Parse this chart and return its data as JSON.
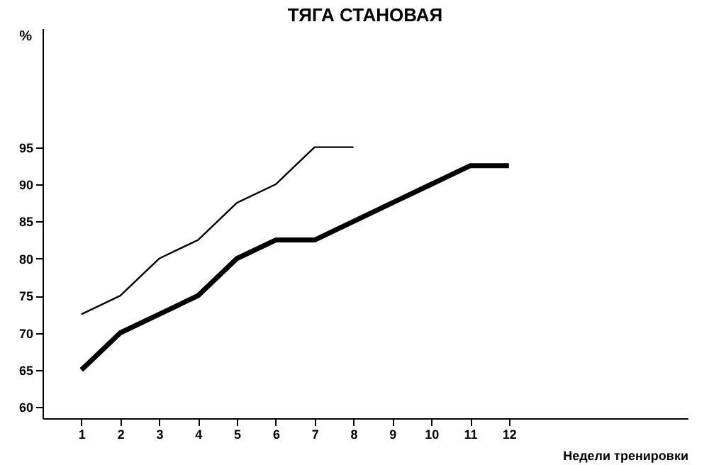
{
  "chart_data": {
    "type": "line",
    "title": "ТЯГА СТАНОВАЯ",
    "xlabel": "Недели тренировки",
    "ylabel": "%",
    "xlim": [
      0,
      16.6
    ],
    "xticks": [
      1,
      2,
      3,
      4,
      5,
      6,
      7,
      8,
      9,
      10,
      11,
      12
    ],
    "ylim": [
      58.5,
      111
    ],
    "yticks": [
      60,
      65,
      70,
      75,
      80,
      85,
      90,
      95
    ],
    "grid": false,
    "marker": "none",
    "line_style": "solid",
    "series": [
      {
        "color": "#000000",
        "x": [
          1,
          2,
          3,
          4,
          5,
          6,
          7,
          8
        ],
        "values": [
          72.5,
          75,
          80,
          82.5,
          87.5,
          90,
          95,
          95
        ]
      },
      {
        "color": "#000000",
        "x": [
          1,
          2,
          3,
          4,
          5,
          6,
          7,
          8,
          9,
          10,
          11,
          12
        ],
        "values": [
          65,
          70,
          72.5,
          75,
          80,
          82.5,
          82.5,
          85,
          87.5,
          90,
          92.5,
          92.5
        ]
      }
    ]
  }
}
